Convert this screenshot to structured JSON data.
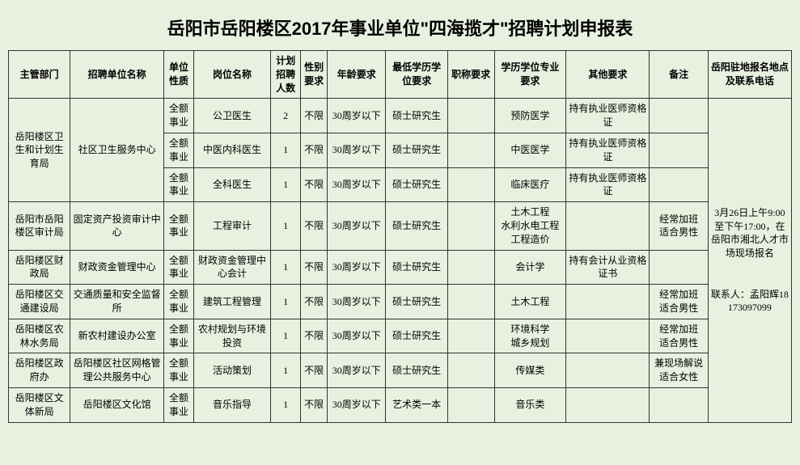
{
  "title": "岳阳市岳阳楼区2017年事业单位\"四海揽才\"招聘计划申报表",
  "headers": {
    "dept": "主管部门",
    "unit": "招聘单位名称",
    "nature": "单位性质",
    "post": "岗位名称",
    "num": "计划招聘人数",
    "sex": "性别要求",
    "age": "年龄要求",
    "edu": "最低学历学位要求",
    "titleReq": "职称要求",
    "major": "学历学位专业要求",
    "other": "其他要求",
    "remark": "备注",
    "contact": "岳阳驻地报名地点及联系电话"
  },
  "contact_info": "3月26日上午9:00至下午17:00，在岳阳市湘北人才市场现场报名\n\n\n联系人：孟阳辉18173097099",
  "rows": [
    {
      "dept": "岳阳楼区卫生和计划生育局",
      "unit": "社区卫生服务中心",
      "nature": "全额事业",
      "post": "公卫医生",
      "num": "2",
      "sex": "不限",
      "age": "30周岁以下",
      "edu": "硕士研究生",
      "titleReq": "",
      "major": "预防医学",
      "other": "持有执业医师资格证",
      "remark": ""
    },
    {
      "dept": "",
      "unit": "",
      "nature": "全额事业",
      "post": "中医内科医生",
      "num": "1",
      "sex": "不限",
      "age": "30周岁以下",
      "edu": "硕士研究生",
      "titleReq": "",
      "major": "中医医学",
      "other": "持有执业医师资格证",
      "remark": ""
    },
    {
      "dept": "",
      "unit": "",
      "nature": "全额事业",
      "post": "全科医生",
      "num": "1",
      "sex": "不限",
      "age": "30周岁以下",
      "edu": "硕士研究生",
      "titleReq": "",
      "major": "临床医疗",
      "other": "持有执业医师资格证",
      "remark": ""
    },
    {
      "dept": "岳阳市岳阳楼区审计局",
      "unit": "固定资产投资审计中心",
      "nature": "全额事业",
      "post": "工程审计",
      "num": "1",
      "sex": "不限",
      "age": "30周岁以下",
      "edu": "硕士研究生",
      "titleReq": "",
      "major": "土木工程\n水利水电工程\n工程造价",
      "other": "",
      "remark": "经常加班\n适合男性"
    },
    {
      "dept": "岳阳楼区财政局",
      "unit": "财政资金管理中心",
      "nature": "全额事业",
      "post": "财政资金管理中心会计",
      "num": "1",
      "sex": "不限",
      "age": "30周岁以下",
      "edu": "硕士研究生",
      "titleReq": "",
      "major": "会计学",
      "other": "持有会计从业资格证书",
      "remark": ""
    },
    {
      "dept": "岳阳楼区交通建设局",
      "unit": "交通质量和安全监督所",
      "nature": "全额事业",
      "post": "建筑工程管理",
      "num": "1",
      "sex": "不限",
      "age": "30周岁以下",
      "edu": "硕士研究生",
      "titleReq": "",
      "major": "土木工程",
      "other": "",
      "remark": "经常加班\n适合男性"
    },
    {
      "dept": "岳阳楼区农林水务局",
      "unit": "新农村建设办公室",
      "nature": "全额事业",
      "post": "农村规划与环境投资",
      "num": "1",
      "sex": "不限",
      "age": "30周岁以下",
      "edu": "硕士研究生",
      "titleReq": "",
      "major": "环境科学\n城乡规划",
      "other": "",
      "remark": "经常加班\n适合男性"
    },
    {
      "dept": "岳阳楼区政府办",
      "unit": "岳阳楼区社区网格管理公共服务中心",
      "nature": "全额事业",
      "post": "活动策划",
      "num": "1",
      "sex": "不限",
      "age": "30周岁以下",
      "edu": "硕士研究生",
      "titleReq": "",
      "major": "传媒类",
      "other": "",
      "remark": "兼现场解说\n适合女性"
    },
    {
      "dept": "岳阳楼区文体新局",
      "unit": "岳阳楼区文化馆",
      "nature": "全额事业",
      "post": "音乐指导",
      "num": "1",
      "sex": "不限",
      "age": "30周岁以下",
      "edu": "艺术类一本",
      "titleReq": "",
      "major": "音乐类",
      "other": "",
      "remark": ""
    }
  ],
  "merge": {
    "dept_rowspans": [
      3,
      0,
      0,
      1,
      1,
      1,
      1,
      1,
      1
    ],
    "unit_rowspans": [
      3,
      0,
      0,
      1,
      1,
      1,
      1,
      1,
      1
    ]
  }
}
